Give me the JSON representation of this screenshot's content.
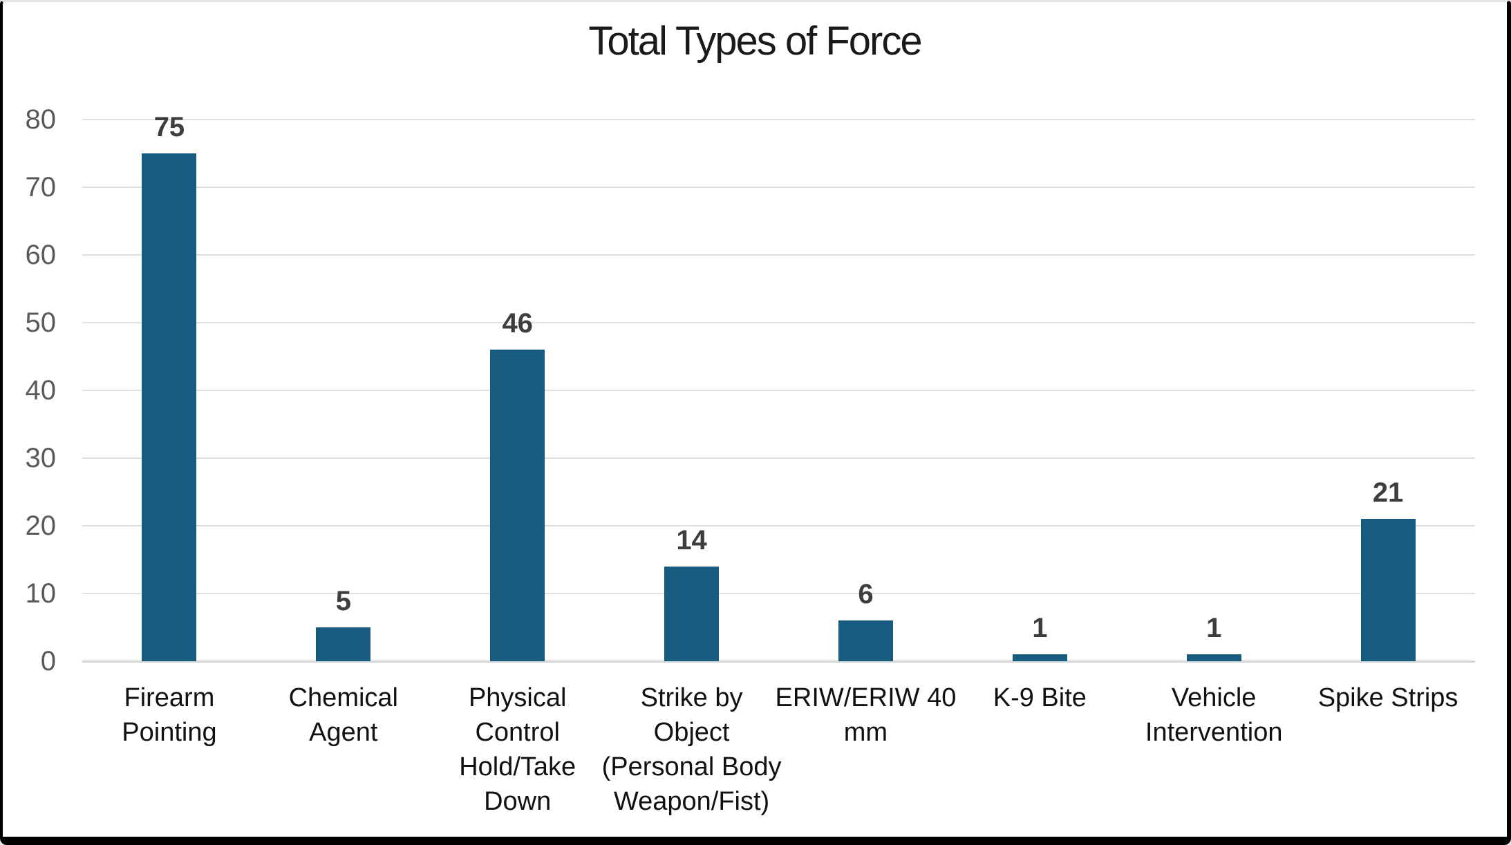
{
  "frame": {
    "border_color": "#000000",
    "outer_edge_color": "#e4e4e4",
    "background": "#ffffff"
  },
  "chart_data": {
    "type": "bar",
    "title": "Total Types of Force",
    "categories": [
      "Firearm Pointing",
      "Chemical Agent",
      "Physical Control Hold/Take Down",
      "Strike by Object (Personal Body Weapon/Fist)",
      "ERIW/ERIW 40 mm",
      "K-9 Bite",
      "Vehicle Intervention",
      "Spike Strips"
    ],
    "category_lines": [
      [
        "Firearm",
        "Pointing"
      ],
      [
        "Chemical",
        "Agent"
      ],
      [
        "Physical",
        "Control",
        "Hold/Take",
        "Down"
      ],
      [
        "Strike by",
        "Object",
        "(Personal Body",
        "Weapon/Fist)"
      ],
      [
        "ERIW/ERIW 40",
        "mm"
      ],
      [
        "K-9 Bite"
      ],
      [
        "Vehicle",
        "Intervention"
      ],
      [
        "Spike Strips"
      ]
    ],
    "values": [
      75,
      5,
      46,
      14,
      6,
      1,
      1,
      21
    ],
    "data_labels": [
      "75",
      "5",
      "46",
      "14",
      "6",
      "1",
      "1",
      "21"
    ],
    "xlabel": "",
    "ylabel": "",
    "ylim": [
      0,
      80
    ],
    "yticks": [
      0,
      10,
      20,
      30,
      40,
      50,
      60,
      70,
      80
    ],
    "grid": true,
    "legend": false,
    "colors": {
      "bar": "#175c7e",
      "gridline": "#e0e0e0",
      "axis_line": "#d4d4d4",
      "title_text": "#1a1a1a",
      "ytick_text": "#595959",
      "xtick_text": "#111111",
      "data_label_text": "#3d3d3d"
    }
  }
}
